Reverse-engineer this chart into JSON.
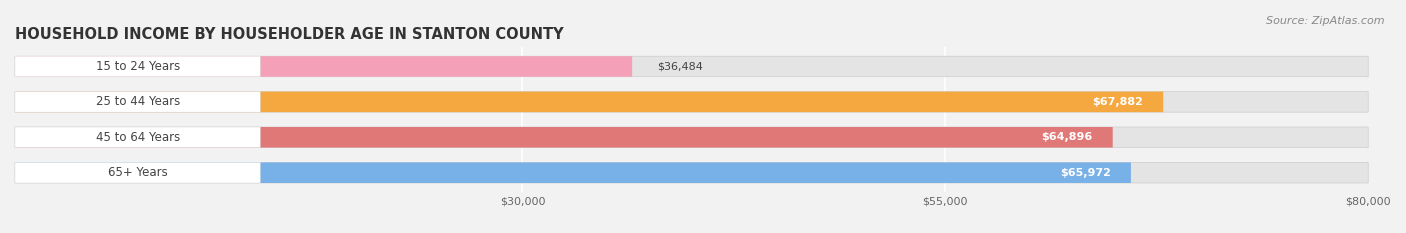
{
  "title": "HOUSEHOLD INCOME BY HOUSEHOLDER AGE IN STANTON COUNTY",
  "source": "Source: ZipAtlas.com",
  "categories": [
    "15 to 24 Years",
    "25 to 44 Years",
    "45 to 64 Years",
    "65+ Years"
  ],
  "values": [
    36484,
    67882,
    64896,
    65972
  ],
  "bar_colors": [
    "#f4a0b8",
    "#f5a840",
    "#e07878",
    "#78b0e8"
  ],
  "bar_labels": [
    "$36,484",
    "$67,882",
    "$64,896",
    "$65,972"
  ],
  "xmin": 0,
  "xmax": 80000,
  "xticks": [
    30000,
    55000,
    80000
  ],
  "xtick_labels": [
    "$30,000",
    "$55,000",
    "$80,000"
  ],
  "bg_color": "#f2f2f2",
  "bar_bg_color": "#e4e4e4",
  "label_bg_color": "#ffffff",
  "title_fontsize": 10.5,
  "label_fontsize": 8.5,
  "value_fontsize": 8.0,
  "source_fontsize": 8.0,
  "bar_height": 0.58,
  "short_value_threshold": 45000
}
